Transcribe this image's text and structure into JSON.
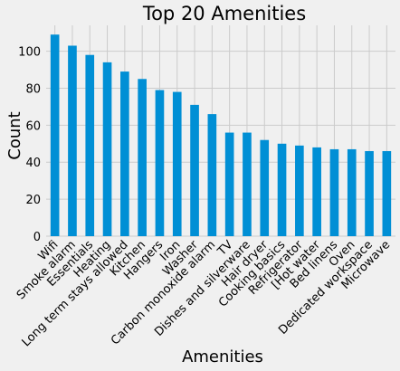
{
  "chart_data": {
    "type": "bar",
    "title": "Top 20 Amenities",
    "xlabel": "Amenities",
    "ylabel": "Count",
    "categories": [
      "Wifi",
      "Smoke alarm",
      "Essentials",
      "Heating",
      "Long term stays allowed",
      "Kitchen",
      "Hangers",
      "Iron",
      "Washer",
      "Carbon monoxide alarm",
      "TV",
      "Dishes and silverware",
      "Hair dryer",
      "Cooking basics",
      "Refrigerator",
      "[Hot water",
      "Bed linens",
      "Oven",
      "Dedicated workspace",
      "Microwave"
    ],
    "values": [
      109,
      103,
      98,
      94,
      89,
      85,
      79,
      78,
      71,
      66,
      56,
      56,
      52,
      50,
      49,
      48,
      47,
      47,
      46,
      46
    ],
    "ylim": [
      0,
      114
    ],
    "yticks": [
      0,
      20,
      40,
      60,
      80,
      100
    ],
    "grid": true,
    "bar_color": "#008fd5",
    "background_color": "#f0f0f0",
    "grid_color": "#cbcbcb"
  }
}
